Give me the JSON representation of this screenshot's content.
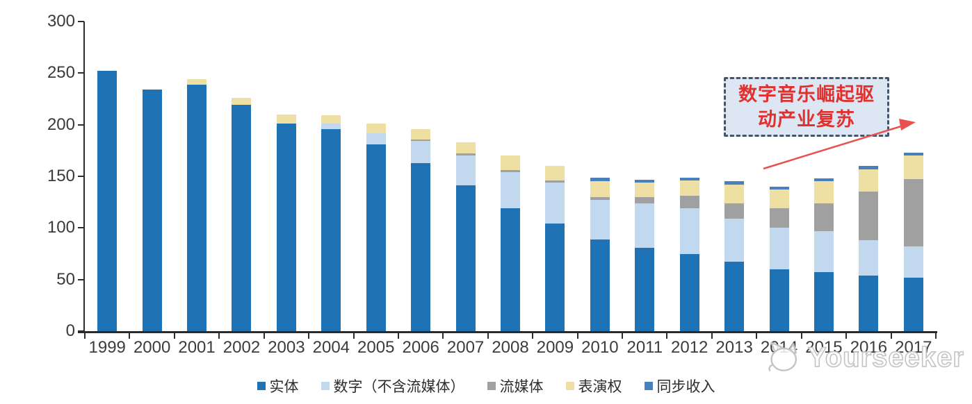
{
  "chart_data": {
    "type": "bar",
    "stacked": true,
    "categories": [
      "1999",
      "2000",
      "2001",
      "2002",
      "2003",
      "2004",
      "2005",
      "2006",
      "2007",
      "2008",
      "2009",
      "2010",
      "2011",
      "2012",
      "2013",
      "2014",
      "2015",
      "2016",
      "2017"
    ],
    "series": [
      {
        "name": "实体",
        "color": "#1f72b3",
        "values": [
          252,
          234,
          239,
          219,
          201,
          196,
          181,
          163,
          141,
          119,
          104,
          89,
          81,
          75,
          67,
          60,
          57,
          54,
          52
        ]
      },
      {
        "name": "数字（不含流媒体）",
        "color": "#c1d8ef",
        "values": [
          0,
          0,
          0,
          0,
          0,
          5,
          11,
          21,
          29,
          35,
          40,
          38,
          43,
          44,
          42,
          40,
          40,
          34,
          30
        ]
      },
      {
        "name": "流媒体",
        "color": "#a0a0a0",
        "values": [
          0,
          0,
          0,
          0,
          0,
          0,
          0,
          2,
          2,
          2,
          2,
          3,
          6,
          12,
          15,
          19,
          27,
          47,
          65
        ]
      },
      {
        "name": "表演权",
        "color": "#eedfa2",
        "values": [
          0,
          0,
          5,
          7,
          9,
          8,
          9,
          10,
          11,
          14,
          14,
          15,
          14,
          15,
          18,
          18,
          21,
          22,
          23
        ]
      },
      {
        "name": "同步收入",
        "color": "#4880bd",
        "values": [
          0,
          0,
          0,
          0,
          0,
          0,
          0,
          0,
          0,
          0,
          0,
          4,
          3,
          3,
          3,
          3,
          3,
          3,
          3
        ]
      }
    ],
    "title": "",
    "xlabel": "",
    "ylabel": "",
    "ylim": [
      0,
      300
    ],
    "yticks": [
      0,
      50,
      100,
      150,
      200,
      250,
      300
    ],
    "grid": false,
    "legend_position": "bottom"
  },
  "annotation": {
    "line1": "数字音乐崛起驱",
    "line2": "动产业复苏",
    "box_fill": "#dce7f3",
    "border_color": "#44546a",
    "text_color": "#e0312e",
    "arrow_color": "#e8514f"
  },
  "watermark": {
    "label": "Yourseeker",
    "color": "#c3c3c3"
  }
}
